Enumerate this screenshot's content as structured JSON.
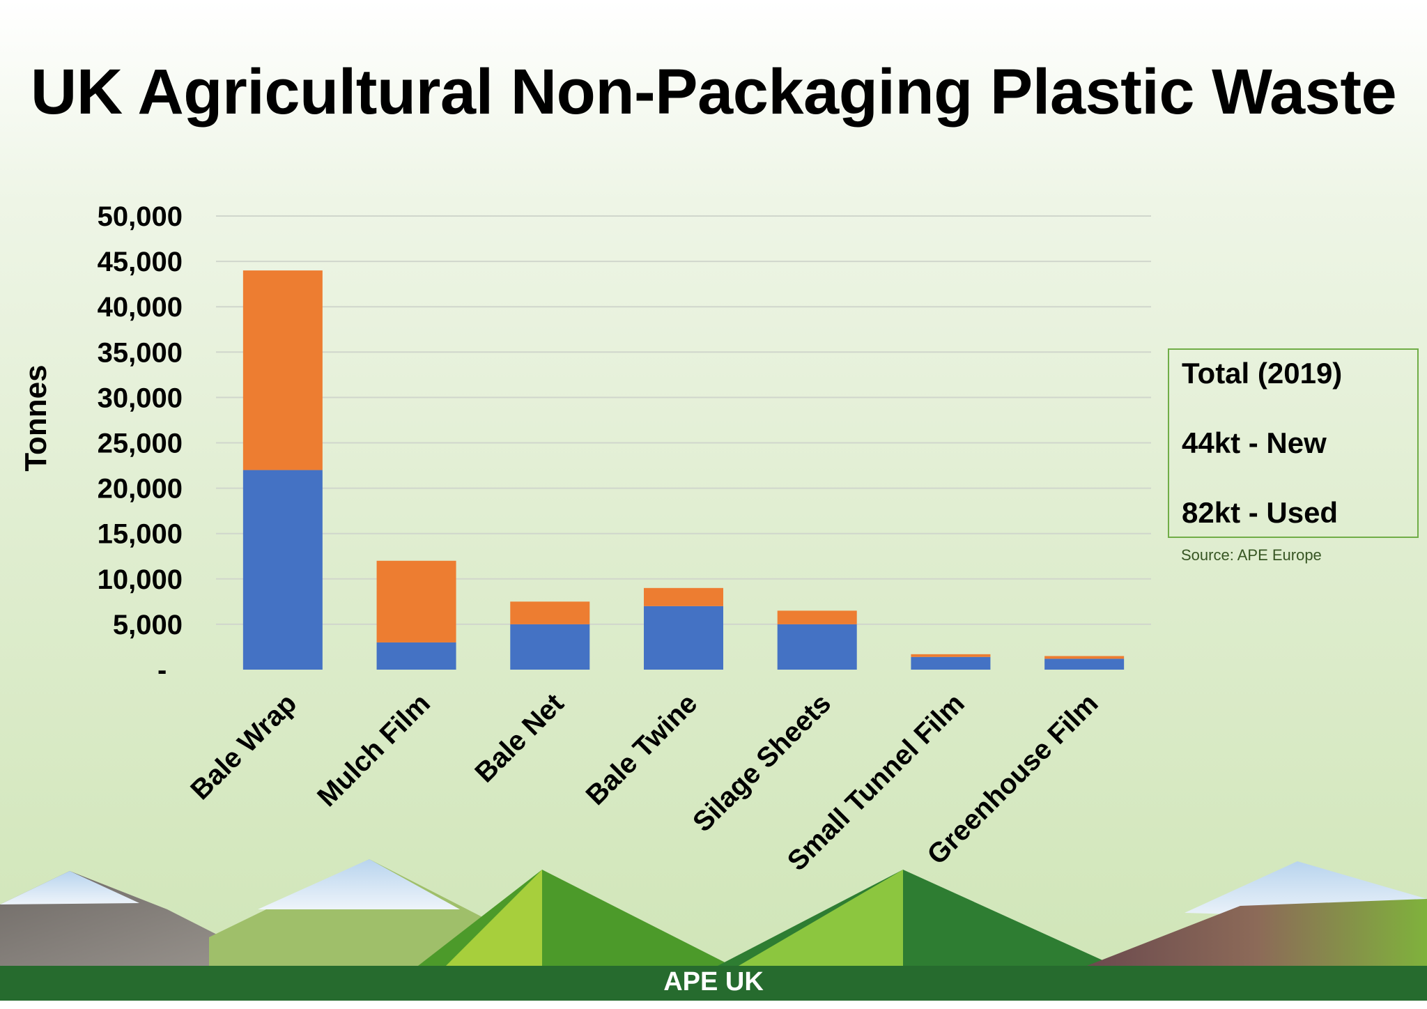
{
  "chart_data": {
    "type": "bar",
    "stacked": true,
    "title": "UK Agricultural Non-Packaging Plastic Waste",
    "ylabel": "Tonnes",
    "xlabel": "",
    "ylim": [
      0,
      50000
    ],
    "yticks": [
      0,
      5000,
      10000,
      15000,
      20000,
      25000,
      30000,
      35000,
      40000,
      45000,
      50000
    ],
    "ytick_labels": [
      "-",
      "5,000",
      "10,000",
      "15,000",
      "20,000",
      "25,000",
      "30,000",
      "35,000",
      "40,000",
      "45,000",
      "50,000"
    ],
    "grid": true,
    "categories": [
      "Bale Wrap",
      "Mulch Film",
      "Bale Net",
      "Bale Twine",
      "Silage Sheets",
      "Small Tunnel Film",
      "Greenhouse Film"
    ],
    "series": [
      {
        "color": "#4472c4",
        "values": [
          22000,
          3000,
          5000,
          7000,
          5000,
          1400,
          1200
        ]
      },
      {
        "color": "#ed7d31",
        "values": [
          22000,
          9000,
          2500,
          2000,
          1500,
          300,
          300
        ]
      }
    ]
  },
  "colors": {
    "grid": "#d0d6cc",
    "box_border": "#70ad47",
    "source_text": "#375623",
    "footer": "#266b2e"
  },
  "totals": {
    "heading": "Total (2019)",
    "new": "44kt - New",
    "used": "82kt - Used"
  },
  "source": "Source: APE Europe",
  "footer": {
    "brand": "APE UK"
  }
}
